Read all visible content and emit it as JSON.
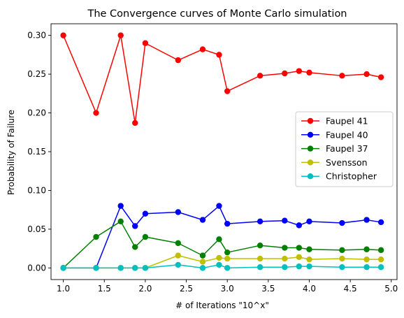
{
  "chart_data": {
    "type": "line",
    "title": "The Convergence curves of Monte Carlo simulation",
    "xlabel": "# of Iterations \"10^x\"",
    "ylabel": "Probability of Failure",
    "xlim": [
      0.85,
      5.07
    ],
    "ylim": [
      -0.015,
      0.315
    ],
    "xticks": [
      "1.0",
      "1.5",
      "2.0",
      "2.5",
      "3.0",
      "3.5",
      "4.0",
      "4.5",
      "5.0"
    ],
    "yticks": [
      "0.00",
      "0.05",
      "0.10",
      "0.15",
      "0.20",
      "0.25",
      "0.30"
    ],
    "grid": false,
    "legend_position": "center-right",
    "x": [
      1.0,
      1.4,
      1.7,
      1.875,
      2.0,
      2.4,
      2.7,
      2.9,
      3.0,
      3.4,
      3.7,
      3.875,
      4.0,
      4.4,
      4.7,
      4.875
    ],
    "series": [
      {
        "name": "Faupel 41",
        "color": "#ff0000",
        "values": [
          0.3,
          0.2,
          0.3,
          0.187,
          0.29,
          0.268,
          0.282,
          0.275,
          0.228,
          0.248,
          0.251,
          0.254,
          0.252,
          0.248,
          0.25,
          0.246
        ]
      },
      {
        "name": "Faupel 40",
        "color": "#0000ff",
        "values": [
          0.0,
          0.0,
          0.08,
          0.054,
          0.07,
          0.072,
          0.062,
          0.08,
          0.057,
          0.06,
          0.061,
          0.055,
          0.06,
          0.058,
          0.062,
          0.059
        ]
      },
      {
        "name": "Faupel 37",
        "color": "#008000",
        "values": [
          0.0,
          0.04,
          0.06,
          0.027,
          0.04,
          0.032,
          0.016,
          0.037,
          0.02,
          0.029,
          0.026,
          0.026,
          0.024,
          0.023,
          0.024,
          0.023
        ]
      },
      {
        "name": "Svensson",
        "color": "#bfbf00",
        "values": [
          0.0,
          0.0,
          0.0,
          0.0,
          0.0,
          0.016,
          0.008,
          0.013,
          0.012,
          0.012,
          0.012,
          0.014,
          0.011,
          0.012,
          0.011,
          0.011
        ]
      },
      {
        "name": "Christopher",
        "color": "#00bfbf",
        "values": [
          0.0,
          0.0,
          0.0,
          0.0,
          0.0,
          0.004,
          0.0,
          0.004,
          0.0,
          0.001,
          0.001,
          0.002,
          0.002,
          0.001,
          0.001,
          0.001
        ]
      }
    ]
  }
}
